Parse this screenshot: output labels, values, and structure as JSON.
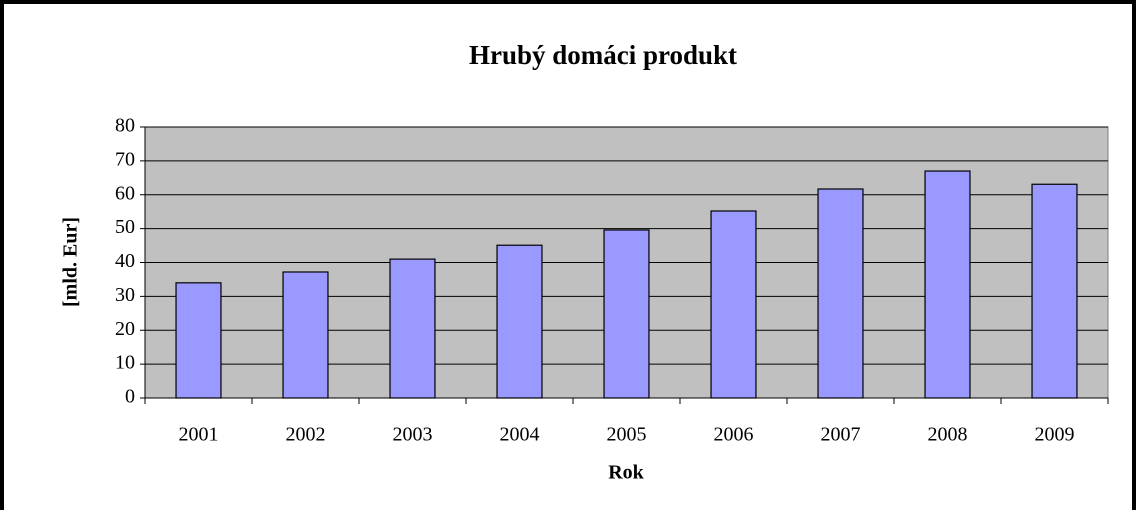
{
  "chart_data": {
    "type": "bar",
    "title": "Hrubý domáci produkt",
    "x_label": "Rok",
    "y_label": "[mld. Eur]",
    "categories": [
      "2001",
      "2002",
      "2003",
      "2004",
      "2005",
      "2006",
      "2007",
      "2008",
      "2009"
    ],
    "values": [
      34,
      37.2,
      41,
      45.1,
      49.6,
      55.2,
      61.7,
      67,
      63.1
    ],
    "color": "#9999ff",
    "plot_background": "#c0c0c0",
    "ylim": [
      0,
      80
    ],
    "yticks": [
      0,
      10,
      20,
      30,
      40,
      50,
      60,
      70,
      80
    ],
    "grid": true
  }
}
